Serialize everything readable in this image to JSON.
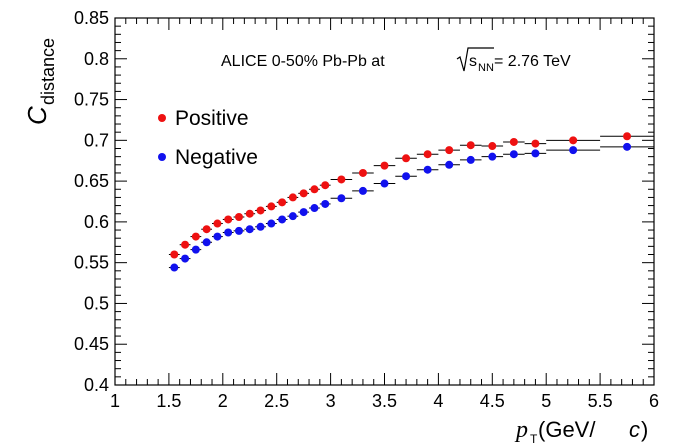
{
  "chart_data": {
    "type": "scatter",
    "annotation": {
      "prefix": "ALICE 0-50% Pb-Pb at ",
      "sqrt_s": "s",
      "sqrt_sub": "NN",
      "suffix": " = 2.76 TeV"
    },
    "ylabel": {
      "main": "C",
      "sub": "distance"
    },
    "xlabel": {
      "p": "p",
      "sub": "T",
      "unit_open": " (GeV/",
      "unit_c": "c",
      "unit_close": ")"
    },
    "xlim": [
      1,
      6
    ],
    "ylim": [
      0.4,
      0.85
    ],
    "x_ticks": [
      "1",
      "1.5",
      "2",
      "2.5",
      "3",
      "3.5",
      "4",
      "4.5",
      "5",
      "5.5",
      "6"
    ],
    "y_ticks": [
      "0.4",
      "0.45",
      "0.5",
      "0.55",
      "0.6",
      "0.65",
      "0.7",
      "0.75",
      "0.8",
      "0.85"
    ],
    "legend": {
      "position": "top-left"
    },
    "grid": false,
    "series": [
      {
        "name": "Positive",
        "color": "#ee1111",
        "points": [
          {
            "x": 1.55,
            "y": 0.56,
            "xerr": 0.05
          },
          {
            "x": 1.65,
            "y": 0.572,
            "xerr": 0.05
          },
          {
            "x": 1.75,
            "y": 0.582,
            "xerr": 0.05
          },
          {
            "x": 1.85,
            "y": 0.591,
            "xerr": 0.05
          },
          {
            "x": 1.95,
            "y": 0.598,
            "xerr": 0.05
          },
          {
            "x": 2.05,
            "y": 0.603,
            "xerr": 0.05
          },
          {
            "x": 2.15,
            "y": 0.606,
            "xerr": 0.05
          },
          {
            "x": 2.25,
            "y": 0.61,
            "xerr": 0.05
          },
          {
            "x": 2.35,
            "y": 0.614,
            "xerr": 0.05
          },
          {
            "x": 2.45,
            "y": 0.619,
            "xerr": 0.05
          },
          {
            "x": 2.55,
            "y": 0.624,
            "xerr": 0.05
          },
          {
            "x": 2.65,
            "y": 0.63,
            "xerr": 0.05
          },
          {
            "x": 2.75,
            "y": 0.635,
            "xerr": 0.05
          },
          {
            "x": 2.85,
            "y": 0.64,
            "xerr": 0.05
          },
          {
            "x": 2.95,
            "y": 0.645,
            "xerr": 0.05
          },
          {
            "x": 3.1,
            "y": 0.652,
            "xerr": 0.1
          },
          {
            "x": 3.3,
            "y": 0.66,
            "xerr": 0.1
          },
          {
            "x": 3.5,
            "y": 0.669,
            "xerr": 0.1
          },
          {
            "x": 3.7,
            "y": 0.678,
            "xerr": 0.1
          },
          {
            "x": 3.9,
            "y": 0.683,
            "xerr": 0.1
          },
          {
            "x": 4.1,
            "y": 0.688,
            "xerr": 0.1
          },
          {
            "x": 4.3,
            "y": 0.694,
            "xerr": 0.1
          },
          {
            "x": 4.5,
            "y": 0.693,
            "xerr": 0.1
          },
          {
            "x": 4.7,
            "y": 0.698,
            "xerr": 0.1
          },
          {
            "x": 4.9,
            "y": 0.696,
            "xerr": 0.1
          },
          {
            "x": 5.25,
            "y": 0.7,
            "xerr": 0.25
          },
          {
            "x": 5.75,
            "y": 0.705,
            "xerr": 0.25
          }
        ]
      },
      {
        "name": "Negative",
        "color": "#1111ee",
        "points": [
          {
            "x": 1.55,
            "y": 0.544,
            "xerr": 0.05
          },
          {
            "x": 1.65,
            "y": 0.555,
            "xerr": 0.05
          },
          {
            "x": 1.75,
            "y": 0.566,
            "xerr": 0.05
          },
          {
            "x": 1.85,
            "y": 0.575,
            "xerr": 0.05
          },
          {
            "x": 1.95,
            "y": 0.582,
            "xerr": 0.05
          },
          {
            "x": 2.05,
            "y": 0.587,
            "xerr": 0.05
          },
          {
            "x": 2.15,
            "y": 0.589,
            "xerr": 0.05
          },
          {
            "x": 2.25,
            "y": 0.591,
            "xerr": 0.05
          },
          {
            "x": 2.35,
            "y": 0.594,
            "xerr": 0.05
          },
          {
            "x": 2.45,
            "y": 0.598,
            "xerr": 0.05
          },
          {
            "x": 2.55,
            "y": 0.603,
            "xerr": 0.05
          },
          {
            "x": 2.65,
            "y": 0.607,
            "xerr": 0.05
          },
          {
            "x": 2.75,
            "y": 0.612,
            "xerr": 0.05
          },
          {
            "x": 2.85,
            "y": 0.617,
            "xerr": 0.05
          },
          {
            "x": 2.95,
            "y": 0.622,
            "xerr": 0.05
          },
          {
            "x": 3.1,
            "y": 0.629,
            "xerr": 0.1
          },
          {
            "x": 3.3,
            "y": 0.638,
            "xerr": 0.1
          },
          {
            "x": 3.5,
            "y": 0.647,
            "xerr": 0.1
          },
          {
            "x": 3.7,
            "y": 0.656,
            "xerr": 0.1
          },
          {
            "x": 3.9,
            "y": 0.664,
            "xerr": 0.1
          },
          {
            "x": 4.1,
            "y": 0.67,
            "xerr": 0.1
          },
          {
            "x": 4.3,
            "y": 0.676,
            "xerr": 0.1
          },
          {
            "x": 4.5,
            "y": 0.68,
            "xerr": 0.1
          },
          {
            "x": 4.7,
            "y": 0.683,
            "xerr": 0.1
          },
          {
            "x": 4.9,
            "y": 0.684,
            "xerr": 0.1
          },
          {
            "x": 5.25,
            "y": 0.688,
            "xerr": 0.25
          },
          {
            "x": 5.75,
            "y": 0.692,
            "xerr": 0.25
          }
        ]
      }
    ]
  }
}
